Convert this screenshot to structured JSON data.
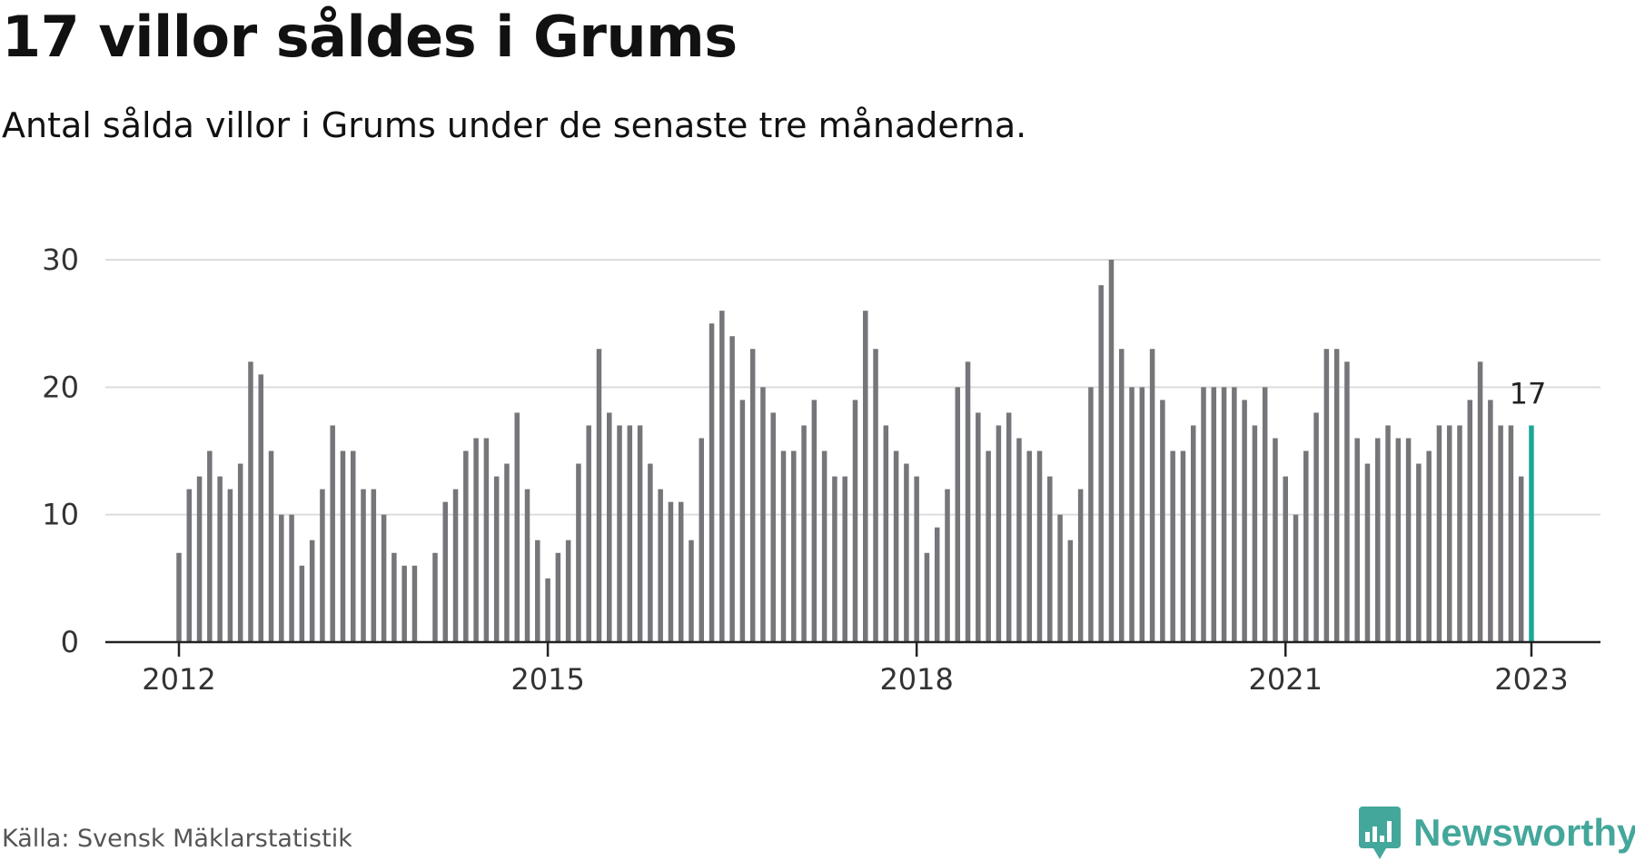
{
  "title": "17 villor såldes i Grums",
  "subtitle": "Antal sålda villor i Grums under de senaste tre månaderna.",
  "source": "Källa: Svensk Mäklarstatistik",
  "brand": {
    "name": "Newsworthy",
    "icon": "newsworthy-bar-chart-icon"
  },
  "colors": {
    "bar": "#75757a",
    "highlight": "#1ea698",
    "grid": "#dcdcdc",
    "axis": "#222222",
    "brand": "#44a79b"
  },
  "chart_data": {
    "type": "bar",
    "x_start": "2012-01",
    "x_step": "1 month",
    "values": [
      7,
      12,
      13,
      15,
      13,
      12,
      14,
      22,
      21,
      15,
      10,
      10,
      6,
      8,
      12,
      17,
      15,
      15,
      12,
      12,
      10,
      7,
      6,
      6,
      0,
      7,
      11,
      12,
      15,
      16,
      16,
      13,
      14,
      18,
      12,
      8,
      5,
      7,
      8,
      14,
      17,
      23,
      18,
      17,
      17,
      17,
      14,
      12,
      11,
      11,
      8,
      16,
      25,
      26,
      24,
      19,
      23,
      20,
      18,
      15,
      15,
      17,
      19,
      15,
      13,
      13,
      19,
      26,
      23,
      17,
      15,
      14,
      13,
      7,
      9,
      12,
      20,
      22,
      18,
      15,
      17,
      18,
      16,
      15,
      15,
      13,
      10,
      8,
      12,
      20,
      28,
      30,
      23,
      20,
      20,
      23,
      19,
      15,
      15,
      17,
      20,
      20,
      20,
      20,
      19,
      17,
      20,
      16,
      13,
      10,
      15,
      18,
      23,
      23,
      22,
      16,
      14,
      16,
      17,
      16,
      16,
      14,
      15,
      17,
      17,
      17,
      19,
      22,
      19,
      17,
      17,
      13,
      17
    ],
    "highlight_last": true,
    "highlight_label": "17",
    "x_ticks": [
      "2012",
      "2015",
      "2018",
      "2021",
      "2023"
    ],
    "y_ticks": [
      "0",
      "10",
      "20",
      "30"
    ],
    "ylim": [
      0,
      30
    ],
    "grid": true,
    "xlabel": "",
    "ylabel": ""
  }
}
